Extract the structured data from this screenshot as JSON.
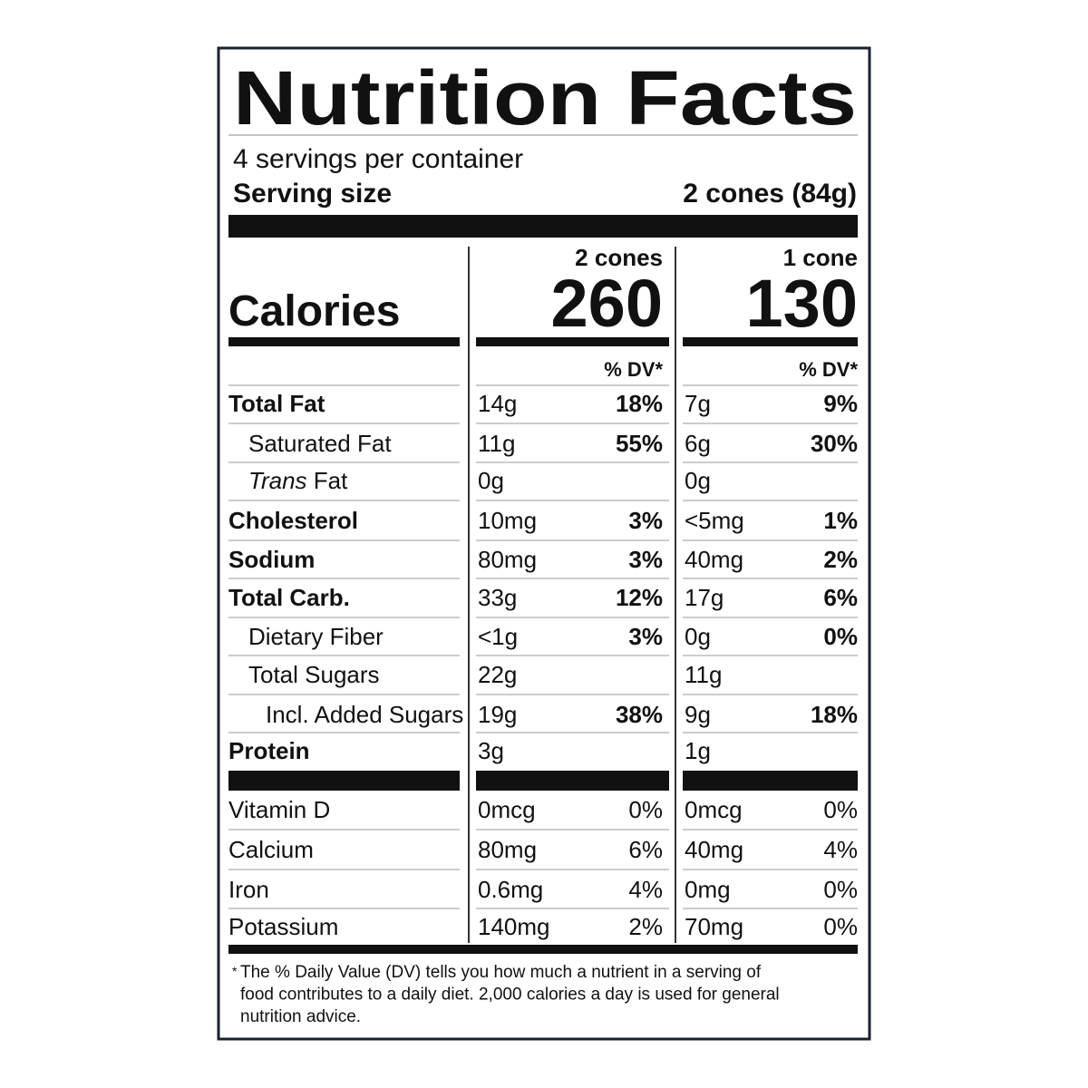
{
  "header": {
    "title": "Nutrition Facts",
    "servings": "4 servings per container",
    "serving_size_label": "Serving size",
    "serving_size": "2 cones (84g)"
  },
  "calories_label": "Calories",
  "columns": [
    {
      "heading": "2 cones",
      "calories": 260
    },
    {
      "heading": "1 cone",
      "calories": 130
    }
  ],
  "dv_heading": "% DV*",
  "nutrients": [
    {
      "name": "Total Fat",
      "bold": true,
      "level": 0,
      "values": [
        [
          "14g",
          "18%"
        ],
        [
          "7g",
          "9%"
        ]
      ]
    },
    {
      "name": "Saturated Fat",
      "bold": false,
      "level": 1,
      "values": [
        [
          "11g",
          "55%"
        ],
        [
          "6g",
          "30%"
        ]
      ]
    },
    {
      "italic_prefix": "Trans",
      "name": "Fat",
      "bold": false,
      "level": 1,
      "values": [
        [
          "0g"
        ],
        [
          "0g"
        ]
      ]
    },
    {
      "name": "Cholesterol",
      "bold": true,
      "level": 0,
      "values": [
        [
          "10mg",
          "3%"
        ],
        [
          "<5mg",
          "1%"
        ]
      ]
    },
    {
      "name": "Sodium",
      "bold": true,
      "level": 0,
      "values": [
        [
          "80mg",
          "3%"
        ],
        [
          "40mg",
          "2%"
        ]
      ]
    },
    {
      "name": "Total Carb.",
      "bold": true,
      "level": 0,
      "values": [
        [
          "33g",
          "12%"
        ],
        [
          "17g",
          "6%"
        ]
      ]
    },
    {
      "name": "Dietary Fiber",
      "bold": false,
      "level": 1,
      "values": [
        [
          "<1g",
          "3%"
        ],
        [
          "0g",
          "0%"
        ]
      ]
    },
    {
      "name": "Total Sugars",
      "bold": false,
      "level": 1,
      "values": [
        [
          "22g"
        ],
        [
          "11g"
        ]
      ]
    },
    {
      "name": "Incl. Added Sugars",
      "bold": false,
      "level": 2,
      "values": [
        [
          "19g",
          "38%"
        ],
        [
          "9g",
          "18%"
        ]
      ]
    },
    {
      "name": "Protein",
      "bold": true,
      "level": 0,
      "values": [
        [
          "3g"
        ],
        [
          "1g"
        ]
      ]
    }
  ],
  "vitamins": [
    {
      "name": "Vitamin D",
      "values": [
        [
          "0mcg",
          "0%"
        ],
        [
          "0mcg",
          "0%"
        ]
      ]
    },
    {
      "name": "Calcium",
      "values": [
        [
          "80mg",
          "6%"
        ],
        [
          "40mg",
          "4%"
        ]
      ]
    },
    {
      "name": "Iron",
      "values": [
        [
          "0.6mg",
          "4%"
        ],
        [
          "0mg",
          "0%"
        ]
      ]
    },
    {
      "name": "Potassium",
      "values": [
        [
          "140mg",
          "2%"
        ],
        [
          "70mg",
          "0%"
        ]
      ]
    }
  ],
  "footnote": {
    "marker": "*",
    "lines": [
      "The % Daily Value (DV) tells you how much a nutrient in a serving of",
      "food contributes to a daily diet. 2,000 calories a day is used for general",
      "nutrition advice."
    ]
  }
}
